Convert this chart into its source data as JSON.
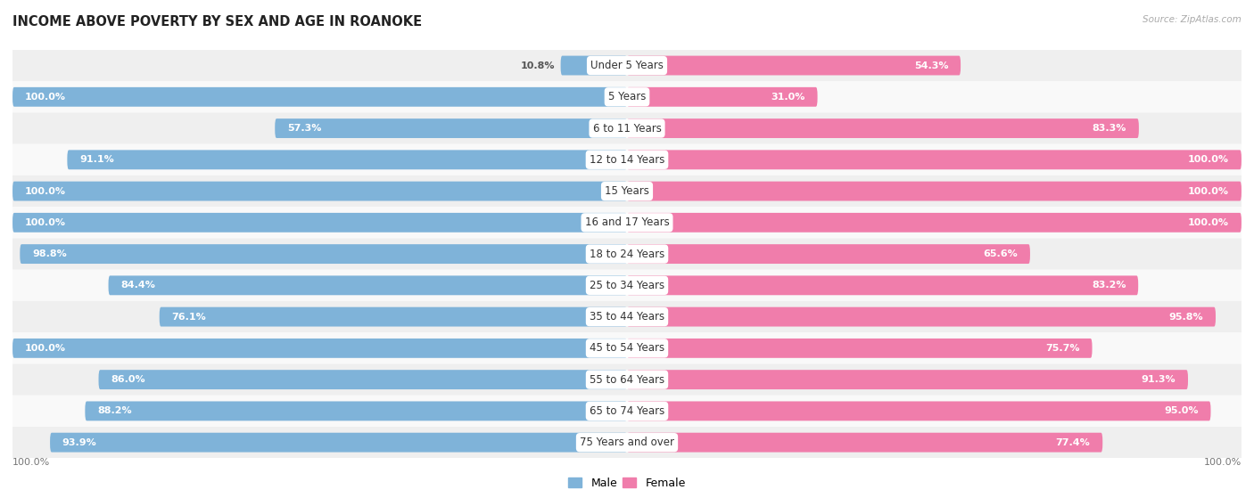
{
  "title": "INCOME ABOVE POVERTY BY SEX AND AGE IN ROANOKE",
  "source": "Source: ZipAtlas.com",
  "categories": [
    "Under 5 Years",
    "5 Years",
    "6 to 11 Years",
    "12 to 14 Years",
    "15 Years",
    "16 and 17 Years",
    "18 to 24 Years",
    "25 to 34 Years",
    "35 to 44 Years",
    "45 to 54 Years",
    "55 to 64 Years",
    "65 to 74 Years",
    "75 Years and over"
  ],
  "male_values": [
    10.8,
    100.0,
    57.3,
    91.1,
    100.0,
    100.0,
    98.8,
    84.4,
    76.1,
    100.0,
    86.0,
    88.2,
    93.9
  ],
  "female_values": [
    54.3,
    31.0,
    83.3,
    100.0,
    100.0,
    100.0,
    65.6,
    83.2,
    95.8,
    75.7,
    91.3,
    95.0,
    77.4
  ],
  "male_color": "#7fb3d9",
  "female_color": "#f07dab",
  "bg_row_light": "#efefef",
  "bg_row_white": "#f9f9f9",
  "title_fontsize": 10.5,
  "label_fontsize": 8.5,
  "value_fontsize": 8.0,
  "legend_male": "Male",
  "legend_female": "Female",
  "x_axis_label_left": "100.0%",
  "x_axis_label_right": "100.0%"
}
